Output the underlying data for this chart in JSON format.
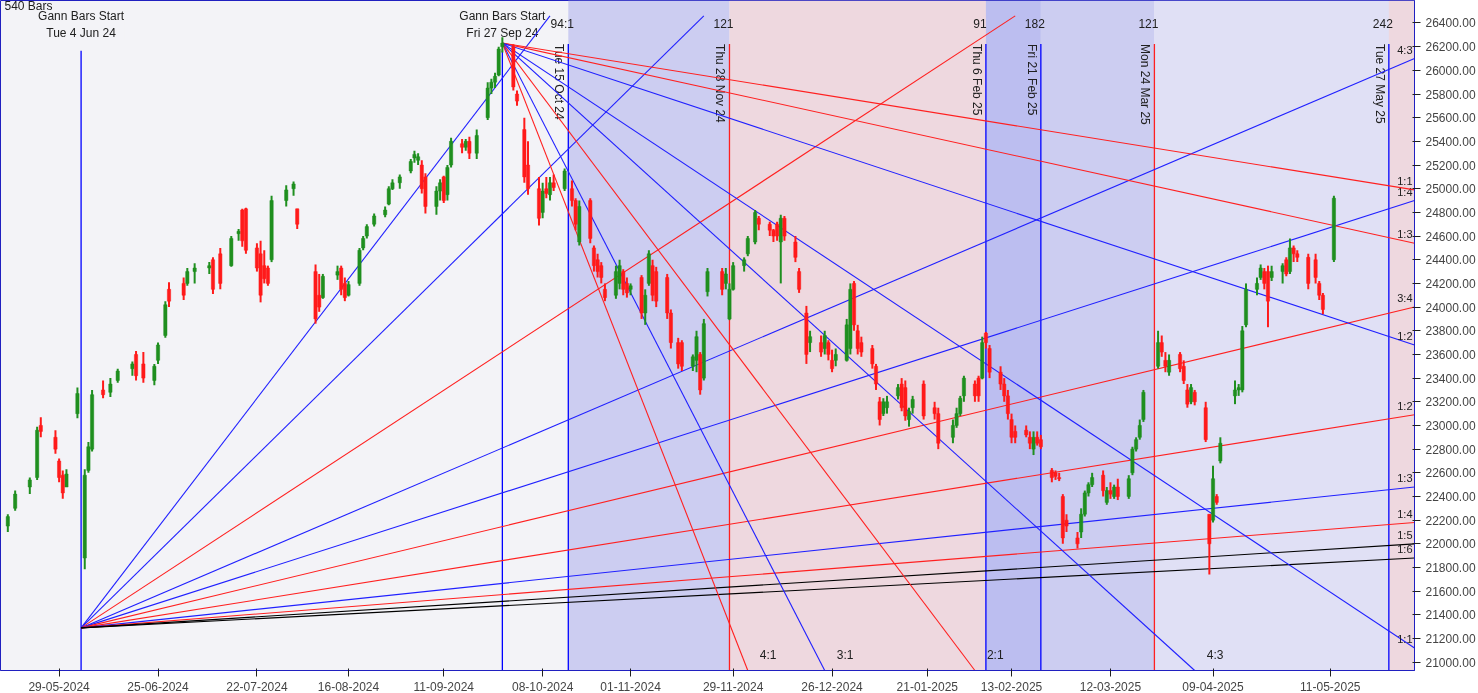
{
  "chart_data": {
    "type": "candlestick",
    "xlim": [
      "2024-05-13",
      "2025-06-03"
    ],
    "ylim": [
      20930,
      26590
    ],
    "xticks": [
      {
        "value": "2024-05-29",
        "label": "29-05-2024"
      },
      {
        "value": "2024-06-25",
        "label": "25-06-2024"
      },
      {
        "value": "2024-07-22",
        "label": "22-07-2024"
      },
      {
        "value": "2024-08-16",
        "label": "16-08-2024"
      },
      {
        "value": "2024-09-11",
        "label": "11-09-2024"
      },
      {
        "value": "2024-10-08",
        "label": "08-10-2024"
      },
      {
        "value": "2024-11-01",
        "label": "01-11-2024"
      },
      {
        "value": "2024-11-29",
        "label": "29-11-2024"
      },
      {
        "value": "2024-12-26",
        "label": "26-12-2024"
      },
      {
        "value": "2025-01-21",
        "label": "21-01-2025"
      },
      {
        "value": "2025-02-13",
        "label": "13-02-2025"
      },
      {
        "value": "2025-03-12",
        "label": "12-03-2025"
      },
      {
        "value": "2025-04-09",
        "label": "09-04-2025"
      },
      {
        "value": "2025-05-11",
        "label": "11-05-2025"
      }
    ],
    "yticks": [
      {
        "value": 21000,
        "label": "21000.00"
      },
      {
        "value": 21200,
        "label": "21200.00"
      },
      {
        "value": 21400,
        "label": "21400.00"
      },
      {
        "value": 21600,
        "label": "21600.00"
      },
      {
        "value": 21800,
        "label": "21800.00"
      },
      {
        "value": 22000,
        "label": "22000.00"
      },
      {
        "value": 22200,
        "label": "22200.00"
      },
      {
        "value": 22400,
        "label": "22400.00"
      },
      {
        "value": 22600,
        "label": "22600.00"
      },
      {
        "value": 22800,
        "label": "22800.00"
      },
      {
        "value": 23000,
        "label": "23000.00"
      },
      {
        "value": 23200,
        "label": "23200.00"
      },
      {
        "value": 23400,
        "label": "23400.00"
      },
      {
        "value": 23600,
        "label": "23600.00"
      },
      {
        "value": 23800,
        "label": "23800.00"
      },
      {
        "value": 24000,
        "label": "24000.00"
      },
      {
        "value": 24200,
        "label": "24200.00"
      },
      {
        "value": 24400,
        "label": "24400.00"
      },
      {
        "value": 24600,
        "label": "24600.00"
      },
      {
        "value": 24800,
        "label": "24800.00"
      },
      {
        "value": 25000,
        "label": "25000.00"
      },
      {
        "value": 25200,
        "label": "25200.00"
      },
      {
        "value": 25400,
        "label": "25400.00"
      },
      {
        "value": 25600,
        "label": "25600.00"
      },
      {
        "value": 25800,
        "label": "25800.00"
      },
      {
        "value": 26000,
        "label": "26000.00"
      },
      {
        "value": 26200,
        "label": "26200.00"
      },
      {
        "value": 26400,
        "label": "26400.00"
      }
    ],
    "grid": false,
    "bands": [
      {
        "axis": "x",
        "from": "2024-10-15",
        "to": "2024-11-28",
        "color": "#c4c6f0"
      },
      {
        "axis": "x",
        "from": "2024-11-28",
        "to": "2025-02-06",
        "color": "#ecd2da"
      },
      {
        "axis": "x",
        "from": "2025-02-06",
        "to": "2025-02-21",
        "color": "#b2b4ee"
      },
      {
        "axis": "x",
        "from": "2025-02-21",
        "to": "2025-03-24",
        "color": "#c4c6f0"
      },
      {
        "axis": "x",
        "from": "2025-03-24",
        "to": "2025-05-27",
        "color": "#dcdcf4"
      },
      {
        "axis": "x",
        "from": "2025-05-27",
        "to": "2025-06-03",
        "color": "#ecd2da"
      }
    ],
    "series": [
      {
        "color": "#1f8f1f",
        "x": [
          "2024-05-15",
          "2024-05-17",
          "2024-05-21",
          "2024-05-23",
          "2024-05-31",
          "2024-06-03",
          "2024-06-05",
          "2024-06-06",
          "2024-06-07",
          "2024-06-12",
          "2024-06-14",
          "2024-06-18",
          "2024-06-24",
          "2024-06-25",
          "2024-06-27",
          "2024-07-03",
          "2024-07-05",
          "2024-07-09",
          "2024-07-15",
          "2024-07-17",
          "2024-07-26",
          "2024-07-30",
          "2024-08-01",
          "2024-08-09",
          "2024-08-13",
          "2024-08-16",
          "2024-08-19",
          "2024-08-20",
          "2024-08-21",
          "2024-08-23",
          "2024-08-26",
          "2024-08-27",
          "2024-08-28",
          "2024-08-30",
          "2024-09-02",
          "2024-09-03",
          "2024-09-04",
          "2024-09-09",
          "2024-09-10",
          "2024-09-12",
          "2024-09-13",
          "2024-09-17",
          "2024-09-20",
          "2024-09-23",
          "2024-09-24",
          "2024-09-25",
          "2024-09-26",
          "2024-09-27",
          "2024-10-08",
          "2024-10-10",
          "2024-10-14",
          "2024-10-18",
          "2024-10-28",
          "2024-10-29",
          "2024-11-01",
          "2024-11-05",
          "2024-11-06",
          "2024-11-18",
          "2024-11-19",
          "2024-11-21",
          "2024-11-22",
          "2024-11-27",
          "2024-11-28",
          "2024-11-29",
          "2024-12-02",
          "2024-12-03",
          "2024-12-05",
          "2024-12-12",
          "2024-12-20",
          "2024-12-24",
          "2024-12-27",
          "2024-12-30",
          "2024-12-31",
          "2025-01-09",
          "2025-01-10",
          "2025-01-13",
          "2025-01-16",
          "2025-01-17",
          "2025-01-28",
          "2025-01-29",
          "2025-01-30",
          "2025-01-31",
          "2025-02-05",
          "2025-02-19",
          "2025-03-04",
          "2025-03-05",
          "2025-03-06",
          "2025-03-07",
          "2025-03-11",
          "2025-03-13",
          "2025-03-17",
          "2025-03-18",
          "2025-03-19",
          "2025-03-20",
          "2025-03-21",
          "2025-03-25",
          "2025-03-28",
          "2025-04-03",
          "2025-04-09",
          "2025-04-11",
          "2025-04-15",
          "2025-04-16",
          "2025-04-17",
          "2025-04-18",
          "2025-04-21",
          "2025-04-22",
          "2025-04-25",
          "2025-04-28",
          "2025-04-30",
          "2025-05-12"
        ],
        "ohlc": [
          [
            22150,
            22250,
            22100,
            22230
          ],
          [
            22300,
            22450,
            22280,
            22420
          ],
          [
            22480,
            22560,
            22420,
            22540
          ],
          [
            22560,
            22990,
            22540,
            22960
          ],
          [
            22480,
            22630,
            22480,
            22590
          ],
          [
            23100,
            23320,
            23060,
            23270
          ],
          [
            21880,
            22630,
            21785,
            22580
          ],
          [
            22620,
            22860,
            22600,
            22820
          ],
          [
            22800,
            23300,
            22780,
            23260
          ],
          [
            23280,
            23400,
            23240,
            23350
          ],
          [
            23380,
            23480,
            23360,
            23460
          ],
          [
            23480,
            23540,
            23420,
            23520
          ],
          [
            23380,
            23520,
            23340,
            23500
          ],
          [
            23550,
            23700,
            23520,
            23680
          ],
          [
            23760,
            24050,
            23740,
            24020
          ],
          [
            24200,
            24330,
            24180,
            24300
          ],
          [
            24300,
            24370,
            24200,
            24330
          ],
          [
            24330,
            24380,
            24280,
            24350
          ],
          [
            24350,
            24600,
            24340,
            24580
          ],
          [
            24620,
            24660,
            24560,
            24640
          ],
          [
            24400,
            24940,
            24380,
            24900
          ],
          [
            24900,
            25030,
            24850,
            24990
          ],
          [
            25000,
            25060,
            24940,
            25040
          ],
          [
            24080,
            24280,
            24070,
            24260
          ],
          [
            24270,
            24350,
            24230,
            24300
          ],
          [
            24100,
            24220,
            24090,
            24190
          ],
          [
            24200,
            24500,
            24180,
            24480
          ],
          [
            24500,
            24600,
            24480,
            24580
          ],
          [
            24600,
            24700,
            24580,
            24680
          ],
          [
            24700,
            24790,
            24680,
            24770
          ],
          [
            24780,
            24850,
            24760,
            24820
          ],
          [
            24870,
            25020,
            24860,
            25000
          ],
          [
            25000,
            25080,
            24990,
            25050
          ],
          [
            25050,
            25120,
            25000,
            25100
          ],
          [
            25150,
            25250,
            25130,
            25230
          ],
          [
            25260,
            25320,
            25220,
            25290
          ],
          [
            25240,
            25300,
            25200,
            25270
          ],
          [
            24850,
            25020,
            24780,
            24980
          ],
          [
            24980,
            25080,
            24900,
            25050
          ],
          [
            24950,
            25200,
            24900,
            25180
          ],
          [
            25200,
            25430,
            25180,
            25400
          ],
          [
            25350,
            25420,
            25320,
            25400
          ],
          [
            25300,
            25500,
            25250,
            25450
          ],
          [
            25600,
            25900,
            25580,
            25850
          ],
          [
            25850,
            25930,
            25800,
            25900
          ],
          [
            25900,
            25980,
            25850,
            25950
          ],
          [
            25960,
            26200,
            25950,
            26180
          ],
          [
            26200,
            26280,
            26150,
            26230
          ],
          [
            24800,
            25050,
            24750,
            24980
          ],
          [
            24950,
            25100,
            24900,
            25050
          ],
          [
            25000,
            25170,
            24980,
            25150
          ],
          [
            24550,
            24900,
            24520,
            24850
          ],
          [
            24100,
            24350,
            24070,
            24300
          ],
          [
            24200,
            24400,
            24150,
            24350
          ],
          [
            24150,
            24200,
            24100,
            24180
          ],
          [
            23950,
            24150,
            23850,
            24100
          ],
          [
            24200,
            24480,
            24180,
            24450
          ],
          [
            23500,
            23600,
            23460,
            23580
          ],
          [
            23550,
            23800,
            23450,
            23750
          ],
          [
            23400,
            23900,
            23380,
            23860
          ],
          [
            24130,
            24330,
            24090,
            24300
          ],
          [
            24200,
            24330,
            24150,
            24280
          ],
          [
            23900,
            24200,
            23890,
            24150
          ],
          [
            24150,
            24380,
            24140,
            24350
          ],
          [
            24350,
            24420,
            24300,
            24400
          ],
          [
            24450,
            24600,
            24430,
            24580
          ],
          [
            24550,
            24820,
            24530,
            24800
          ],
          [
            24550,
            24780,
            24200,
            24750
          ],
          [
            23700,
            23800,
            23620,
            23750
          ],
          [
            23650,
            23800,
            23600,
            23760
          ],
          [
            23550,
            23650,
            23500,
            23600
          ],
          [
            23550,
            23900,
            23540,
            23850
          ],
          [
            23650,
            24200,
            23600,
            24150
          ],
          [
            23100,
            23230,
            23080,
            23200
          ],
          [
            23150,
            23250,
            23100,
            23200
          ],
          [
            23250,
            23350,
            23220,
            23320
          ],
          [
            23050,
            23150,
            22990,
            23120
          ],
          [
            23150,
            23250,
            23100,
            23220
          ],
          [
            22900,
            23050,
            22850,
            23000
          ],
          [
            23000,
            23150,
            22980,
            23100
          ],
          [
            23100,
            23250,
            23080,
            23230
          ],
          [
            23250,
            23420,
            23200,
            23400
          ],
          [
            23400,
            23750,
            23390,
            23700
          ],
          [
            22800,
            22950,
            22750,
            22900
          ],
          [
            22100,
            22300,
            22050,
            22250
          ],
          [
            22250,
            22450,
            22230,
            22430
          ],
          [
            22430,
            22520,
            22400,
            22500
          ],
          [
            22500,
            22600,
            22480,
            22560
          ],
          [
            22350,
            22480,
            22330,
            22450
          ],
          [
            22400,
            22500,
            22380,
            22480
          ],
          [
            22400,
            22580,
            22380,
            22550
          ],
          [
            22600,
            22820,
            22580,
            22800
          ],
          [
            22800,
            22900,
            22780,
            22880
          ],
          [
            22900,
            23050,
            22880,
            23000
          ],
          [
            23050,
            23300,
            23030,
            23280
          ],
          [
            23500,
            23800,
            23480,
            23700
          ],
          [
            23450,
            23600,
            23420,
            23550
          ],
          [
            23200,
            23350,
            23180,
            23320
          ],
          [
            22200,
            22660,
            22180,
            22550
          ],
          [
            22700,
            22900,
            22680,
            22850
          ],
          [
            23250,
            23380,
            23180,
            23300
          ],
          [
            23300,
            23350,
            23250,
            23320
          ],
          [
            23300,
            23840,
            23280,
            23800
          ],
          [
            23850,
            24200,
            23830,
            24150
          ],
          [
            24150,
            24250,
            24100,
            24200
          ],
          [
            24250,
            24360,
            24230,
            24330
          ],
          [
            24250,
            24350,
            24220,
            24300
          ],
          [
            24300,
            24370,
            24200,
            24350
          ],
          [
            24300,
            24580,
            24280,
            24500
          ],
          [
            24400,
            24940,
            24380,
            24920
          ]
        ]
      },
      {
        "color": "#ff1a1a",
        "x": [
          "2024-05-24",
          "2024-05-28",
          "2024-05-29",
          "2024-05-30",
          "2024-06-10",
          "2024-06-19",
          "2024-06-21",
          "2024-06-28",
          "2024-07-02",
          "2024-07-10",
          "2024-07-12",
          "2024-07-18",
          "2024-07-19",
          "2024-07-22",
          "2024-07-23",
          "2024-07-24",
          "2024-07-25",
          "2024-08-02",
          "2024-08-07",
          "2024-08-08",
          "2024-08-14",
          "2024-08-15",
          "2024-09-05",
          "2024-09-06",
          "2024-09-11",
          "2024-09-16",
          "2024-09-18",
          "2024-09-30",
          "2024-10-01",
          "2024-10-03",
          "2024-10-04",
          "2024-10-07",
          "2024-10-09",
          "2024-10-11",
          "2024-10-16",
          "2024-10-17",
          "2024-10-21",
          "2024-10-22",
          "2024-10-23",
          "2024-10-24",
          "2024-10-25",
          "2024-10-30",
          "2024-10-31",
          "2024-11-04",
          "2024-11-07",
          "2024-11-08",
          "2024-11-11",
          "2024-11-12",
          "2024-11-14",
          "2024-11-15",
          "2024-11-20",
          "2024-11-26",
          "2024-12-06",
          "2024-12-09",
          "2024-12-10",
          "2024-12-11",
          "2024-12-13",
          "2024-12-16",
          "2024-12-17",
          "2024-12-19",
          "2024-12-23",
          "2024-12-25",
          "2024-12-26",
          "2025-01-01",
          "2025-01-02",
          "2025-01-03",
          "2025-01-06",
          "2025-01-07",
          "2025-01-08",
          "2025-01-14",
          "2025-01-15",
          "2025-01-20",
          "2025-01-23",
          "2025-01-24",
          "2025-02-03",
          "2025-02-04",
          "2025-02-06",
          "2025-02-07",
          "2025-02-10",
          "2025-02-11",
          "2025-02-12",
          "2025-02-13",
          "2025-02-14",
          "2025-02-17",
          "2025-02-18",
          "2025-02-20",
          "2025-02-21",
          "2025-02-24",
          "2025-02-25",
          "2025-02-26",
          "2025-02-27",
          "2025-02-28",
          "2025-03-03",
          "2025-03-10",
          "2025-03-12",
          "2025-03-14",
          "2025-03-26",
          "2025-03-27",
          "2025-03-31",
          "2025-04-01",
          "2025-04-02",
          "2025-04-04",
          "2025-04-07",
          "2025-04-08",
          "2025-04-10",
          "2025-04-23",
          "2025-04-24",
          "2025-04-29",
          "2025-05-01",
          "2025-05-02",
          "2025-05-05",
          "2025-05-07",
          "2025-05-08",
          "2025-05-09"
        ],
        "ohlc": [
          [
            23000,
            23070,
            22900,
            22950
          ],
          [
            22900,
            22960,
            22760,
            22800
          ],
          [
            22700,
            22720,
            22520,
            22560
          ],
          [
            22580,
            22620,
            22380,
            22430
          ],
          [
            23300,
            23380,
            23230,
            23260
          ],
          [
            23600,
            23630,
            23380,
            23420
          ],
          [
            23520,
            23620,
            23360,
            23400
          ],
          [
            24150,
            24210,
            24000,
            24050
          ],
          [
            24200,
            24250,
            24060,
            24100
          ],
          [
            24400,
            24420,
            24110,
            24150
          ],
          [
            24450,
            24500,
            24150,
            24200
          ],
          [
            24820,
            24830,
            24510,
            24560
          ],
          [
            24830,
            24840,
            24450,
            24480
          ],
          [
            24500,
            24540,
            24300,
            24330
          ],
          [
            24450,
            24560,
            24040,
            24100
          ],
          [
            24350,
            24480,
            24200,
            24240
          ],
          [
            24330,
            24350,
            24180,
            24200
          ],
          [
            24830,
            24830,
            24660,
            24700
          ],
          [
            24300,
            24360,
            23860,
            23900
          ],
          [
            24100,
            24280,
            23960,
            24000
          ],
          [
            24330,
            24350,
            24100,
            24150
          ],
          [
            24200,
            24250,
            24050,
            24080
          ],
          [
            25200,
            25240,
            24960,
            25000
          ],
          [
            25100,
            25130,
            24790,
            24850
          ],
          [
            25100,
            25110,
            24880,
            24900
          ],
          [
            25380,
            25420,
            25300,
            25350
          ],
          [
            25400,
            25440,
            25250,
            25300
          ],
          [
            26200,
            26220,
            25830,
            25860
          ],
          [
            25800,
            25830,
            25700,
            25740
          ],
          [
            25500,
            25600,
            25050,
            25100
          ],
          [
            25200,
            25400,
            24950,
            25000
          ],
          [
            25000,
            25100,
            24690,
            24750
          ],
          [
            25000,
            25100,
            24920,
            24960
          ],
          [
            25050,
            25120,
            24980,
            25010
          ],
          [
            25000,
            25070,
            24850,
            24900
          ],
          [
            24900,
            24920,
            24650,
            24700
          ],
          [
            24900,
            24920,
            24540,
            24580
          ],
          [
            24500,
            24520,
            24300,
            24350
          ],
          [
            24400,
            24450,
            24250,
            24300
          ],
          [
            24350,
            24380,
            24200,
            24250
          ],
          [
            24150,
            24200,
            24050,
            24080
          ],
          [
            24300,
            24320,
            24100,
            24150
          ],
          [
            24200,
            24250,
            24080,
            24120
          ],
          [
            24250,
            24270,
            23900,
            23950
          ],
          [
            24350,
            24400,
            24050,
            24100
          ],
          [
            24300,
            24340,
            24000,
            24050
          ],
          [
            24250,
            24280,
            23900,
            23950
          ],
          [
            23950,
            23980,
            23650,
            23700
          ],
          [
            23700,
            23740,
            23480,
            23520
          ],
          [
            23700,
            23720,
            23460,
            23500
          ],
          [
            23600,
            23620,
            23260,
            23300
          ],
          [
            24300,
            24330,
            24100,
            24150
          ],
          [
            24750,
            24770,
            24650,
            24700
          ],
          [
            24700,
            24720,
            24600,
            24650
          ],
          [
            24650,
            24660,
            24550,
            24600
          ],
          [
            24700,
            24720,
            24560,
            24600
          ],
          [
            24750,
            24770,
            24560,
            24600
          ],
          [
            24550,
            24600,
            24380,
            24420
          ],
          [
            24300,
            24330,
            24120,
            24150
          ],
          [
            23950,
            24010,
            23520,
            23600
          ],
          [
            23700,
            23760,
            23580,
            23620
          ],
          [
            23700,
            23720,
            23550,
            23600
          ],
          [
            23550,
            23640,
            23450,
            23480
          ],
          [
            24200,
            24220,
            23800,
            23850
          ],
          [
            23800,
            23850,
            23600,
            23650
          ],
          [
            23700,
            23750,
            23580,
            23620
          ],
          [
            23650,
            23680,
            23480,
            23520
          ],
          [
            23500,
            23520,
            23300,
            23350
          ],
          [
            23200,
            23240,
            23000,
            23050
          ],
          [
            23350,
            23400,
            23120,
            23150
          ],
          [
            23320,
            23380,
            23040,
            23080
          ],
          [
            23350,
            23380,
            23050,
            23080
          ],
          [
            23150,
            23200,
            23050,
            23100
          ],
          [
            23100,
            23150,
            22800,
            22850
          ],
          [
            23350,
            23380,
            23200,
            23250
          ],
          [
            23400,
            23420,
            23200,
            23250
          ],
          [
            23780,
            23790,
            23650,
            23700
          ],
          [
            23650,
            23680,
            23400,
            23450
          ],
          [
            23450,
            23500,
            23300,
            23350
          ],
          [
            23350,
            23400,
            23200,
            23250
          ],
          [
            23250,
            23300,
            23050,
            23100
          ],
          [
            23050,
            23100,
            22850,
            22900
          ],
          [
            22950,
            23000,
            22850,
            22900
          ],
          [
            22960,
            23000,
            22900,
            22920
          ],
          [
            22900,
            22950,
            22800,
            22850
          ],
          [
            22900,
            22950,
            22830,
            22850
          ],
          [
            22880,
            22920,
            22800,
            22820
          ],
          [
            22620,
            22640,
            22520,
            22560
          ],
          [
            22600,
            22620,
            22540,
            22570
          ],
          [
            22560,
            22600,
            22530,
            22550
          ],
          [
            22400,
            22420,
            22000,
            22050
          ],
          [
            22200,
            22250,
            22100,
            22150
          ],
          [
            22050,
            22100,
            21960,
            22000
          ],
          [
            22580,
            22620,
            22400,
            22450
          ],
          [
            22450,
            22520,
            22380,
            22420
          ],
          [
            22480,
            22550,
            22370,
            22400
          ],
          [
            23700,
            23760,
            23580,
            23620
          ],
          [
            23550,
            23620,
            23450,
            23500
          ],
          [
            23600,
            23620,
            23450,
            23480
          ],
          [
            23500,
            23550,
            23350,
            23380
          ],
          [
            23300,
            23350,
            23150,
            23180
          ],
          [
            23280,
            23300,
            23170,
            23200
          ],
          [
            23150,
            23200,
            22860,
            22880
          ],
          [
            22250,
            22250,
            21740,
            22000
          ],
          [
            22400,
            22420,
            22330,
            22350
          ],
          [
            24300,
            24330,
            24150,
            24200
          ],
          [
            24300,
            24350,
            23830,
            24050
          ],
          [
            24400,
            24420,
            24260,
            24280
          ],
          [
            24500,
            24520,
            24380,
            24450
          ],
          [
            24450,
            24480,
            24380,
            24420
          ],
          [
            24420,
            24450,
            24150,
            24200
          ],
          [
            24400,
            24450,
            24200,
            24250
          ],
          [
            24200,
            24220,
            24060,
            24100
          ],
          [
            24100,
            24120,
            23940,
            23980
          ]
        ]
      },
      {
        "type": "line",
        "color": "#2020ff",
        "x": [
          "2024-06-04",
          "2024-10-10"
        ],
        "values": [
          21290,
          26460
        ]
      },
      {
        "type": "line",
        "color": "#2020ff",
        "x": [
          "2024-06-04",
          "2024-11-21"
        ],
        "values": [
          21290,
          26460
        ]
      },
      {
        "type": "line",
        "color": "#ff2020",
        "x": [
          "2024-06-04",
          "2025-02-14"
        ],
        "values": [
          21290,
          26460
        ]
      },
      {
        "type": "line",
        "color": "#2020ff",
        "name": "4:3",
        "x": [
          "2024-06-04",
          "2025-06-03"
        ],
        "values": [
          21290,
          26100
        ]
      },
      {
        "type": "line",
        "color": "#2020ff",
        "name": "1:4",
        "x": [
          "2024-06-04",
          "2025-06-03"
        ],
        "values": [
          21290,
          24900
        ]
      },
      {
        "type": "line",
        "color": "#ff2020",
        "name": "3:4",
        "x": [
          "2024-06-04",
          "2025-06-03"
        ],
        "values": [
          21290,
          24000
        ]
      },
      {
        "type": "line",
        "color": "#ff2020",
        "name": "1:2",
        "x": [
          "2024-06-04",
          "2025-06-03"
        ],
        "values": [
          21290,
          23090
        ]
      },
      {
        "type": "line",
        "color": "#2020ff",
        "name": "1:3",
        "x": [
          "2024-06-04",
          "2025-06-03"
        ],
        "values": [
          21290,
          22480
        ]
      },
      {
        "type": "line",
        "color": "#ff2020",
        "name": "1:4",
        "x": [
          "2024-06-04",
          "2025-06-03"
        ],
        "values": [
          21290,
          22180
        ]
      },
      {
        "type": "line",
        "color": "#000000",
        "name": "1:5",
        "x": [
          "2024-06-04",
          "2025-06-03"
        ],
        "values": [
          21290,
          22000
        ]
      },
      {
        "type": "line",
        "color": "#000000",
        "name": "1:6",
        "x": [
          "2024-06-04",
          "2025-06-03"
        ],
        "values": [
          21290,
          21880
        ]
      },
      {
        "type": "line",
        "color": "#ff2020",
        "name": "1:1",
        "x": [
          "2024-09-27",
          "2025-06-03"
        ],
        "values": [
          26230,
          24990
        ]
      },
      {
        "type": "line",
        "color": "#ff2020",
        "name": "1:3",
        "x": [
          "2024-09-27",
          "2025-06-03"
        ],
        "values": [
          26230,
          24540
        ]
      },
      {
        "type": "line",
        "color": "#2020ff",
        "name": "1:2",
        "x": [
          "2024-09-27",
          "2025-06-03"
        ],
        "values": [
          26230,
          23680
        ]
      },
      {
        "type": "line",
        "color": "#2020ff",
        "name": "1:1",
        "x": [
          "2024-09-27",
          "2025-06-03"
        ],
        "values": [
          26230,
          21120
        ]
      },
      {
        "type": "line",
        "color": "#2020ff",
        "name": "4:3",
        "x": [
          "2024-09-27",
          "2025-04-04"
        ],
        "values": [
          26230,
          20930
        ]
      },
      {
        "type": "line",
        "color": "#ff2020",
        "name": "2:1",
        "x": [
          "2024-09-27",
          "2025-02-03"
        ],
        "values": [
          26230,
          20930
        ]
      },
      {
        "type": "line",
        "color": "#2020ff",
        "name": "3:1",
        "x": [
          "2024-09-27",
          "2024-12-24"
        ],
        "values": [
          26230,
          20930
        ]
      },
      {
        "type": "line",
        "color": "#ff2020",
        "name": "4:1",
        "x": [
          "2024-09-27",
          "2024-12-03"
        ],
        "values": [
          26230,
          20930
        ]
      }
    ],
    "ref_lines": [
      {
        "axis": "x",
        "value": "2024-06-04",
        "label": "Gann Bars Start\nTue 4 Jun 24",
        "color": "#0000ff"
      },
      {
        "axis": "x",
        "value": "2024-09-27",
        "label": "Gann Bars Start\nFri 27 Sep 24",
        "color": "#0000ff"
      },
      {
        "axis": "x",
        "value": "2024-10-15",
        "label": "Tue 15 Oct 24",
        "color": "#0000ff"
      },
      {
        "axis": "x",
        "value": "2024-11-28",
        "label": "Thu 28 Nov 24",
        "color": "#ff2020"
      },
      {
        "axis": "x",
        "value": "2025-02-06",
        "label": "Thu 6 Feb 25",
        "color": "#0000ff"
      },
      {
        "axis": "x",
        "value": "2025-02-21",
        "label": "Fri 21 Feb 25",
        "color": "#0000ff"
      },
      {
        "axis": "x",
        "value": "2025-03-24",
        "label": "Mon 24 Mar 25",
        "color": "#ff2020"
      },
      {
        "axis": "x",
        "value": "2025-05-27",
        "label": "Tue 27 May 25",
        "color": "#0000ff"
      }
    ],
    "annotations": [
      "540 Bars",
      "94:1",
      "121",
      "91",
      "182",
      "121",
      "242"
    ]
  }
}
